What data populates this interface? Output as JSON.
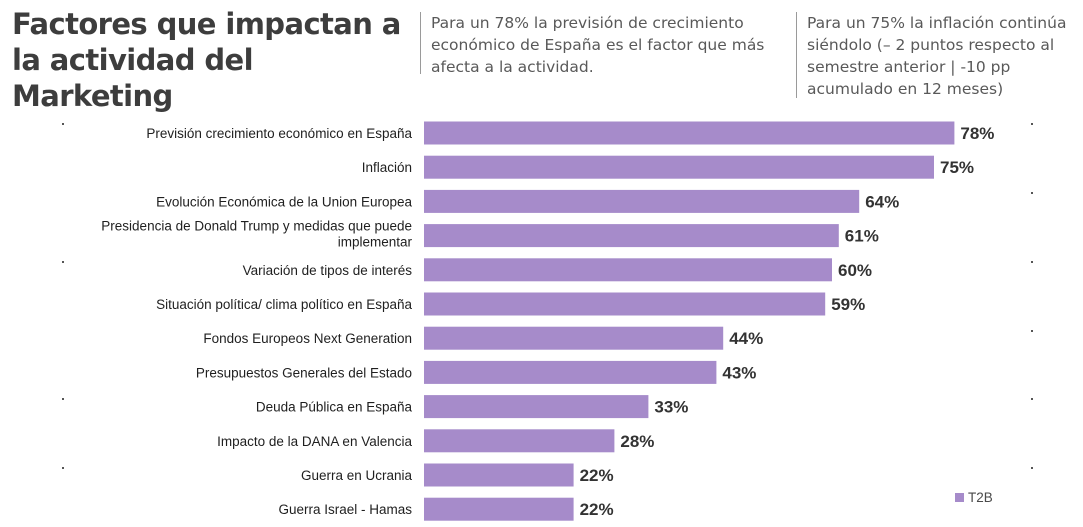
{
  "title": "Factores que impactan a la actividad del Marketing",
  "notes": [
    "Para un 78% la previsión de crecimiento económico de España es el factor que más afecta a la actividad.",
    "Para un 75% la inflación continúa siéndolo (– 2 puntos respecto al semestre anterior | -10 pp acumulado en 12 meses)"
  ],
  "colors": {
    "bar": "#a68bca",
    "text": "#3a3a3a"
  },
  "chart_data": {
    "type": "bar",
    "orientation": "horizontal",
    "categories": [
      "Previsión crecimiento económico en España",
      "Inflación",
      "Evolución Económica de la Union Europea",
      "Presidencia de Donald Trump y medidas que puede implementar",
      "Variación de tipos de interés",
      "Situación política/ clima político en España",
      "Fondos Europeos Next Generation",
      "Presupuestos Generales del Estado",
      "Deuda Pública en España",
      "Impacto de la DANA en Valencia",
      "Guerra en Ucrania",
      "Guerra Israel - Hamas"
    ],
    "series": [
      {
        "name": "T2B",
        "values": [
          78,
          75,
          64,
          61,
          60,
          59,
          44,
          43,
          33,
          28,
          22,
          22
        ]
      }
    ],
    "value_labels": [
      "78%",
      "75%",
      "64%",
      "61%",
      "60%",
      "59%",
      "44%",
      "43%",
      "33%",
      "28%",
      "22%",
      "22%"
    ],
    "xlim": [
      0,
      100
    ],
    "grid": false,
    "legend_position": "bottom-right"
  }
}
